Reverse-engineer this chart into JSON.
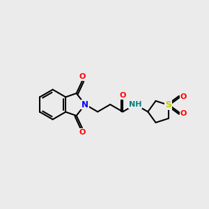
{
  "bg_color": "#ebebeb",
  "bond_color": "#000000",
  "N_color": "#0000ff",
  "O_color": "#ff0000",
  "S_color": "#cccc00",
  "NH_color": "#008080",
  "lw": 1.5,
  "xlim": [
    0,
    10
  ],
  "ylim": [
    2,
    8
  ]
}
